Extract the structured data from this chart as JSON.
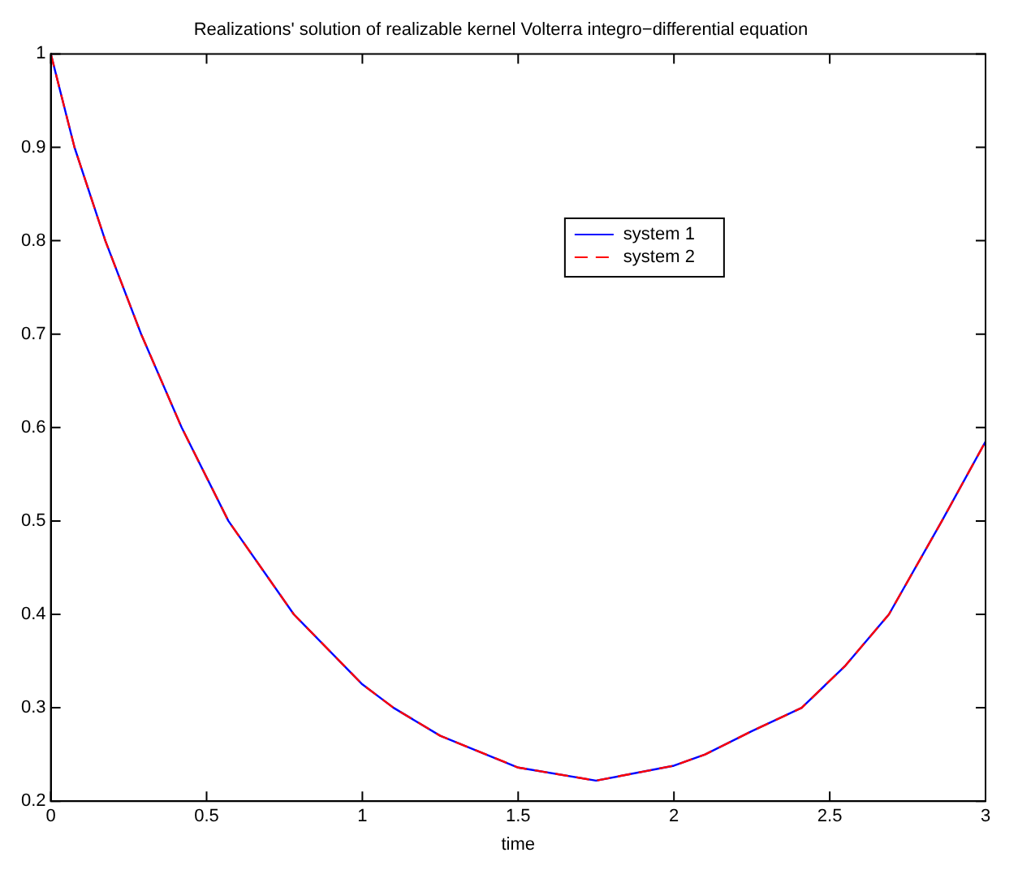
{
  "chart_data": {
    "type": "line",
    "title": "Realizations' solution of realizable kernel Volterra integro−differential equation",
    "xlabel": "time",
    "xlim": [
      0,
      3
    ],
    "xticks": [
      0,
      0.5,
      1,
      1.5,
      2,
      2.5,
      3
    ],
    "ylim": [
      0.2,
      1
    ],
    "yticks": [
      0.2,
      0.3,
      0.4,
      0.5,
      0.6,
      0.7,
      0.8,
      0.9,
      1
    ],
    "x": [
      0,
      0.076,
      0.175,
      0.29,
      0.42,
      0.57,
      0.78,
      1.0,
      1.1,
      1.25,
      1.5,
      1.75,
      2.0,
      2.1,
      2.25,
      2.41,
      2.55,
      2.69,
      2.86,
      3
    ],
    "series": [
      {
        "name": "system 1",
        "color": "#0000ff",
        "line_style": "solid",
        "values": [
          1,
          0.9,
          0.8,
          0.7,
          0.6,
          0.5,
          0.4,
          0.325,
          0.3,
          0.27,
          0.236,
          0.222,
          0.238,
          0.25,
          0.275,
          0.3,
          0.345,
          0.4,
          0.5,
          0.585
        ]
      },
      {
        "name": "system 2",
        "color": "#ff0000",
        "line_style": "dashed",
        "values": [
          1,
          0.9,
          0.8,
          0.7,
          0.6,
          0.5,
          0.4,
          0.325,
          0.3,
          0.27,
          0.236,
          0.222,
          0.238,
          0.25,
          0.275,
          0.3,
          0.345,
          0.4,
          0.5,
          0.585
        ]
      }
    ],
    "marker": "none",
    "grid": false,
    "legend": "top right"
  }
}
